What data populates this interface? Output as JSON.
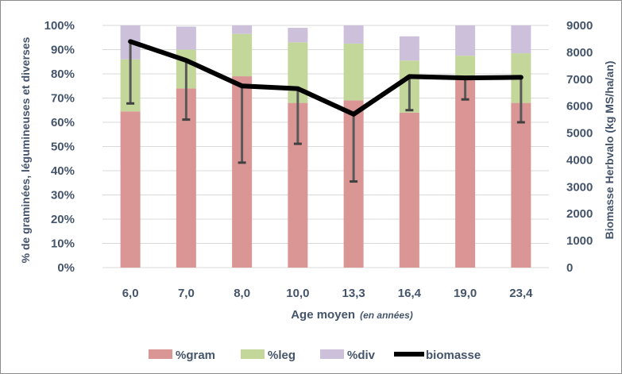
{
  "chart_data": {
    "type": "bar",
    "stacked": true,
    "categories": [
      "6,0",
      "7,0",
      "8,0",
      "10,0",
      "13,3",
      "16,4",
      "19,0",
      "23,4"
    ],
    "series": [
      {
        "name": "%gram",
        "color": "#da9694",
        "values": [
          64.5,
          74,
          79,
          68,
          69,
          64,
          78,
          68
        ]
      },
      {
        "name": "%leg",
        "color": "#c4d79b",
        "values": [
          21.5,
          16,
          17.5,
          25,
          23.5,
          21.5,
          9.5,
          20.5
        ]
      },
      {
        "name": "%div",
        "color": "#ccc0da",
        "values": [
          14,
          9.5,
          3.5,
          6,
          7.5,
          10,
          12.5,
          11.5
        ]
      }
    ],
    "line_series": {
      "name": "biomasse",
      "color": "#000000",
      "values": [
        8400,
        7700,
        6750,
        6650,
        5700,
        7100,
        7050,
        7070
      ],
      "err_low": [
        6100,
        5500,
        3900,
        4600,
        3200,
        5850,
        6250,
        5400
      ],
      "err_high": [
        8400,
        7700,
        6750,
        6650,
        5700,
        7100,
        7050,
        7070
      ]
    },
    "xlabel": "Age moyen",
    "xlabel_note": "(en années)",
    "ylabel_left": "% de graminées, légumineuses et diverses",
    "ylabel_right": "Biomasse Herbvalo (kg MS/ha/an)",
    "ylim_left": [
      0,
      100
    ],
    "ylim_right": [
      0,
      9000
    ],
    "yticks_left": [
      "0%",
      "10%",
      "20%",
      "30%",
      "40%",
      "50%",
      "60%",
      "70%",
      "80%",
      "90%",
      "100%"
    ],
    "yticks_right": [
      "0",
      "1000",
      "2000",
      "3000",
      "4000",
      "5000",
      "6000",
      "7000",
      "8000",
      "9000"
    ],
    "grid": true,
    "legend_position": "bottom"
  }
}
